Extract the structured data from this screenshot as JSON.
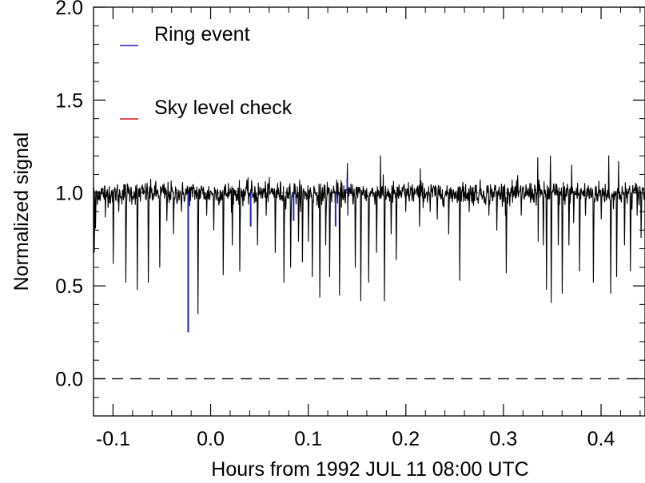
{
  "chart_data": {
    "type": "line",
    "title": "",
    "xlabel": "Hours from 1992 JUL 11 08:00 UTC",
    "ylabel": "Normalized signal",
    "xlim": [
      -0.12,
      0.445
    ],
    "ylim": [
      -0.2,
      2.0
    ],
    "x_ticks": [
      -0.1,
      0.0,
      0.1,
      0.2,
      0.3,
      0.4
    ],
    "x_tick_labels": [
      "-0.1",
      "0.0",
      "0.1",
      "0.2",
      "0.3",
      "0.4"
    ],
    "y_ticks": [
      0.0,
      0.5,
      1.0,
      1.5,
      2.0
    ],
    "y_tick_labels": [
      "0.0",
      "0.5",
      "1.0",
      "1.5",
      "2.0"
    ],
    "grid": false,
    "legend_position": "top-left",
    "reference_lines": [
      {
        "y": 1.0,
        "style": "dotted",
        "color": "#000000"
      },
      {
        "y": 0.0,
        "style": "dashed",
        "color": "#000000"
      }
    ],
    "series": [
      {
        "name": "",
        "color": "#000000",
        "baseline": 1.0,
        "noise_sigma": 0.03,
        "x_range": [
          -0.12,
          0.445
        ],
        "dips": [
          [
            -0.119,
            0.68
          ],
          [
            -0.118,
            0.81
          ],
          [
            -0.108,
            0.87
          ],
          [
            -0.1,
            0.62
          ],
          [
            -0.094,
            0.9
          ],
          [
            -0.087,
            0.52
          ],
          [
            -0.075,
            0.48
          ],
          [
            -0.064,
            0.52
          ],
          [
            -0.052,
            0.6
          ],
          [
            -0.045,
            0.85
          ],
          [
            -0.038,
            0.78
          ],
          [
            -0.03,
            0.9
          ],
          [
            -0.013,
            0.35
          ],
          [
            -0.004,
            0.88
          ],
          [
            0.003,
            0.8
          ],
          [
            0.013,
            0.56
          ],
          [
            0.022,
            0.72
          ],
          [
            0.03,
            0.58
          ],
          [
            0.048,
            0.72
          ],
          [
            0.057,
            0.88
          ],
          [
            0.066,
            0.68
          ],
          [
            0.075,
            0.52
          ],
          [
            0.082,
            0.6
          ],
          [
            0.09,
            0.74
          ],
          [
            0.094,
            0.63
          ],
          [
            0.1,
            0.74
          ],
          [
            0.104,
            0.55
          ],
          [
            0.112,
            0.44
          ],
          [
            0.118,
            0.72
          ],
          [
            0.122,
            0.55
          ],
          [
            0.132,
            0.45
          ],
          [
            0.14,
            0.72
          ],
          [
            0.148,
            0.6
          ],
          [
            0.154,
            0.42
          ],
          [
            0.162,
            0.52
          ],
          [
            0.17,
            0.68
          ],
          [
            0.178,
            0.42
          ],
          [
            0.185,
            0.78
          ],
          [
            0.19,
            0.64
          ],
          [
            0.2,
            0.9
          ],
          [
            0.214,
            0.82
          ],
          [
            0.225,
            0.9
          ],
          [
            0.232,
            0.86
          ],
          [
            0.244,
            0.78
          ],
          [
            0.255,
            0.53
          ],
          [
            0.265,
            0.9
          ],
          [
            0.285,
            0.88
          ],
          [
            0.293,
            0.8
          ],
          [
            0.303,
            0.57
          ],
          [
            0.318,
            0.88
          ],
          [
            0.335,
            0.44
          ],
          [
            0.341,
            0.72
          ],
          [
            0.344,
            0.48
          ],
          [
            0.349,
            0.41
          ],
          [
            0.356,
            0.72
          ],
          [
            0.36,
            0.46
          ],
          [
            0.367,
            0.72
          ],
          [
            0.372,
            0.84
          ],
          [
            0.378,
            0.58
          ],
          [
            0.384,
            0.88
          ],
          [
            0.392,
            0.52
          ],
          [
            0.4,
            0.86
          ],
          [
            0.41,
            0.46
          ],
          [
            0.416,
            0.55
          ],
          [
            0.424,
            0.72
          ],
          [
            0.43,
            0.58
          ],
          [
            0.437,
            0.88
          ],
          [
            0.441,
            0.76
          ]
        ],
        "spikes": [
          [
            0.14,
            1.16
          ],
          [
            0.174,
            1.2
          ],
          [
            0.215,
            1.13
          ],
          [
            0.335,
            1.19
          ],
          [
            0.348,
            1.2
          ],
          [
            0.37,
            1.15
          ],
          [
            0.408,
            1.2
          ],
          [
            0.418,
            1.17
          ]
        ]
      },
      {
        "name": "Ring event",
        "color": "#1f22c8",
        "events": [
          [
            -0.023,
            0.25
          ],
          [
            0.041,
            0.82
          ],
          [
            0.085,
            0.85
          ],
          [
            0.128,
            0.82
          ],
          [
            0.14,
            1.08
          ]
        ]
      },
      {
        "name": "Sky level check",
        "color": "#e0141e",
        "events": []
      }
    ]
  }
}
